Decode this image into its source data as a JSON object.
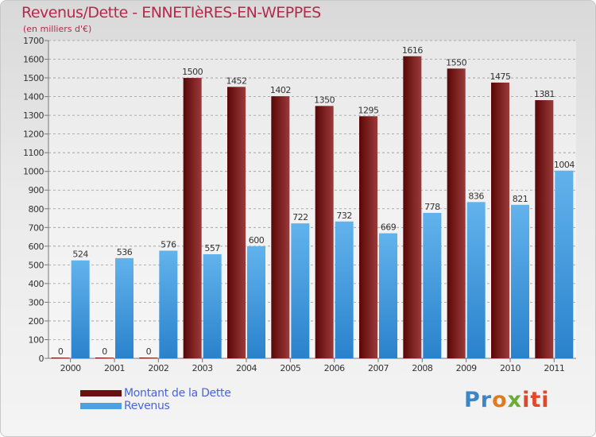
{
  "header": {
    "title": "Revenus/Dette - ENNETIèRES-EN-WEPPES",
    "subtitle": "(en milliers d'€)"
  },
  "legend": {
    "items": [
      {
        "label": "Montant de la Dette",
        "color": "#6b0f12"
      },
      {
        "label": "Revenus",
        "color": "#4ea1e0"
      }
    ]
  },
  "logo": {
    "text": "Proxiti",
    "parts": [
      "Pr",
      "o",
      "x",
      "iti"
    ]
  },
  "colors": {
    "dette_dark": "#5a0707",
    "dette_light": "#9c3a3a",
    "revenus_dark": "#2a82cc",
    "revenus_light": "#62b3ec",
    "title": "#b22b4a",
    "legend_text": "#4a64d8"
  },
  "chart_data": {
    "type": "bar",
    "title": "Revenus/Dette - ENNETIèRES-EN-WEPPES",
    "subtitle": "(en milliers d'€)",
    "categories": [
      "2000",
      "2001",
      "2002",
      "2003",
      "2004",
      "2005",
      "2006",
      "2007",
      "2008",
      "2009",
      "2010",
      "2011"
    ],
    "series": [
      {
        "name": "Montant de la Dette",
        "values": [
          0,
          0,
          0,
          1500,
          1452,
          1402,
          1350,
          1295,
          1616,
          1550,
          1475,
          1381
        ]
      },
      {
        "name": "Revenus",
        "values": [
          524,
          536,
          576,
          557,
          600,
          722,
          732,
          669,
          778,
          836,
          821,
          1004
        ]
      }
    ],
    "ylim": [
      0,
      1700
    ],
    "yticks": [
      0,
      100,
      200,
      300,
      400,
      500,
      600,
      700,
      800,
      900,
      1000,
      1100,
      1200,
      1300,
      1400,
      1500,
      1600,
      1700
    ],
    "grid": true,
    "legend_position": "bottom-left"
  }
}
